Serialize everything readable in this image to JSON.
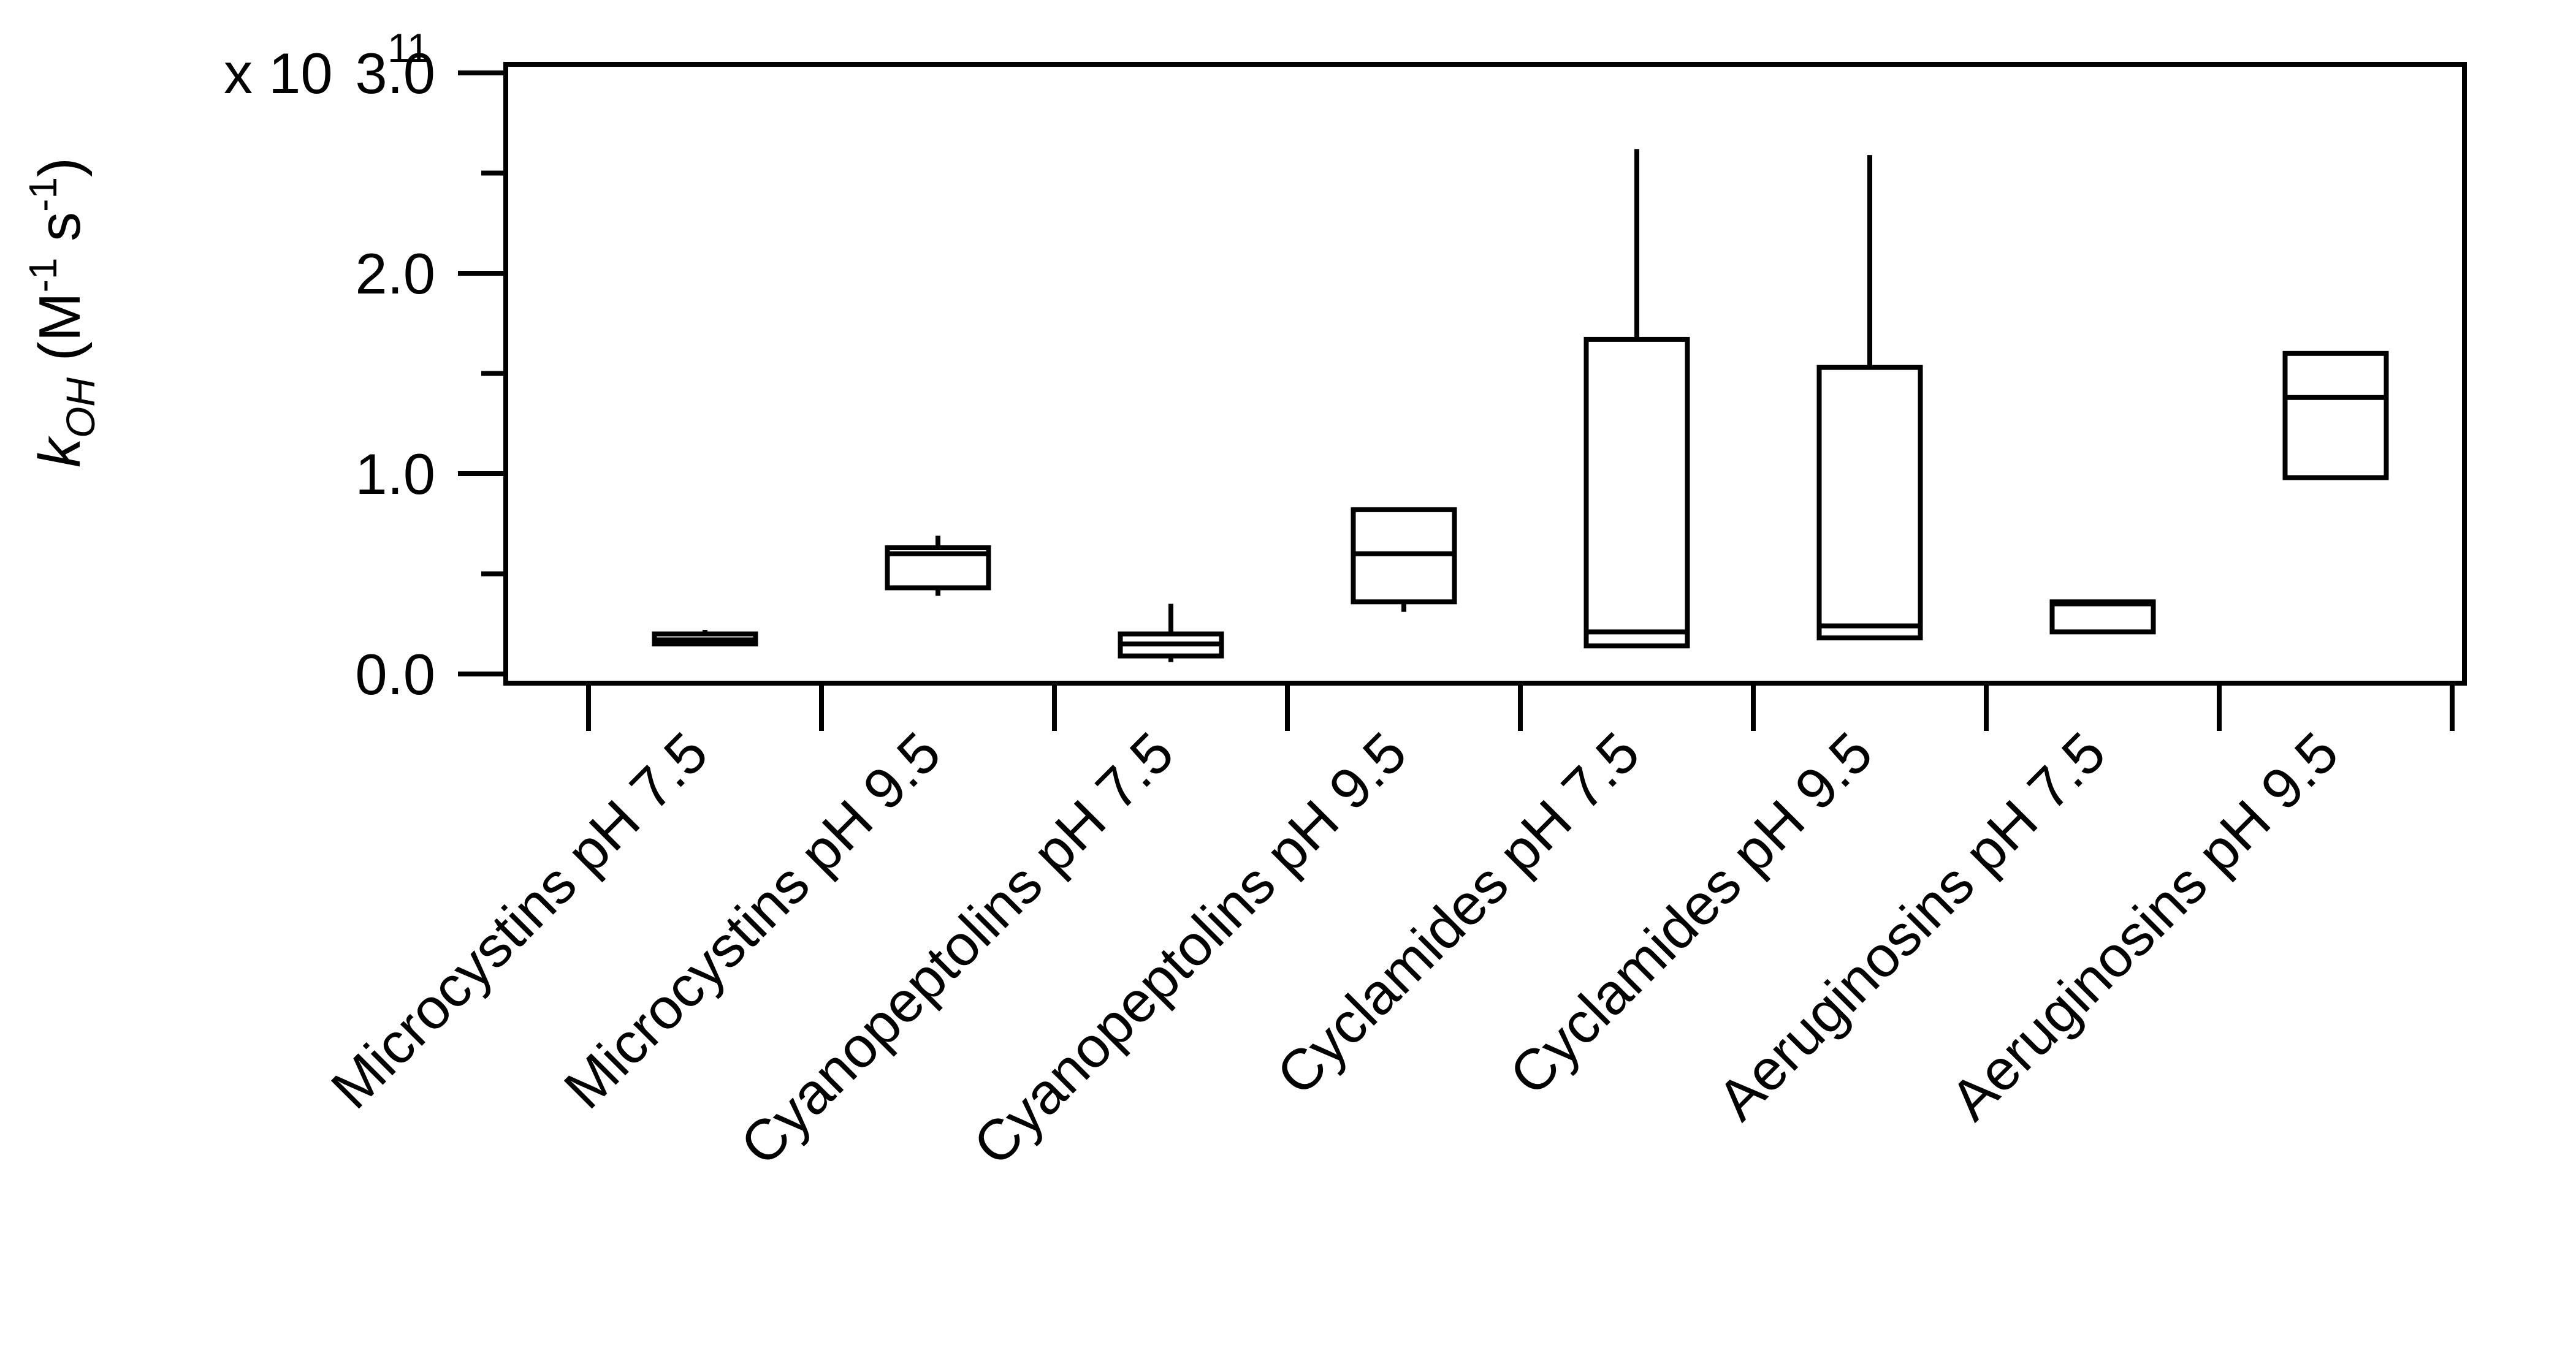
{
  "chart_data": {
    "type": "box",
    "title": "",
    "xlabel": "",
    "ylabel": {
      "symbol": "k",
      "subscript": "OH",
      "unit_prefix": " (M",
      "unit_exp1": "-1",
      "unit_mid": " s",
      "unit_exp2": "-1",
      "unit_suffix": ")"
    },
    "ylim": [
      0,
      3.0
    ],
    "multiplier": "x 10",
    "multiplier_exponent": "11",
    "y_tick_labels": [
      {
        "value": 0.0,
        "label": "0.0"
      },
      {
        "value": 1.0,
        "label": "1.0"
      },
      {
        "value": 2.0,
        "label": "2.0"
      },
      {
        "value": 3.0,
        "label": "3.0"
      }
    ],
    "y_minor_ticks": [
      0.5,
      1.5,
      2.5
    ],
    "grid": false,
    "legend": "none",
    "categories": [
      "Microcystins pH 7.5",
      "Microcystins pH 9.5",
      "Cyanopeptolins pH 7.5",
      "Cyanopeptolins pH 9.5",
      "Cyclamides pH 7.5",
      "Cyclamides pH 9.5",
      "Aeruginosins pH 7.5",
      "Aeruginosins pH 9.5"
    ],
    "boxes": [
      {
        "whisker_low": 0.15,
        "q1": 0.15,
        "median": 0.17,
        "q3": 0.2,
        "whisker_high": 0.22
      },
      {
        "whisker_low": 0.39,
        "q1": 0.43,
        "median": 0.6,
        "q3": 0.63,
        "whisker_high": 0.69
      },
      {
        "whisker_low": 0.06,
        "q1": 0.09,
        "median": 0.15,
        "q3": 0.2,
        "whisker_high": 0.35
      },
      {
        "whisker_low": 0.31,
        "q1": 0.36,
        "median": 0.6,
        "q3": 0.82,
        "whisker_high": 0.82
      },
      {
        "whisker_low": 0.14,
        "q1": 0.14,
        "median": 0.21,
        "q3": 1.67,
        "whisker_high": 2.62
      },
      {
        "whisker_low": 0.18,
        "q1": 0.18,
        "median": 0.24,
        "q3": 1.53,
        "whisker_high": 2.59
      },
      {
        "whisker_low": 0.21,
        "q1": 0.21,
        "median": 0.35,
        "q3": 0.36,
        "whisker_high": 0.36
      },
      {
        "whisker_low": 0.98,
        "q1": 0.98,
        "median": 1.38,
        "q3": 1.6,
        "whisker_high": 1.6
      }
    ]
  }
}
